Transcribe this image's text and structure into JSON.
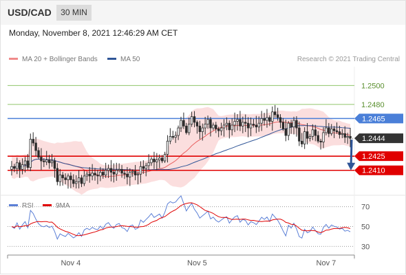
{
  "header": {
    "symbol": "USD/CAD",
    "timeframe": "30 MIN"
  },
  "datetime": "Monday, November 8, 2021 12:46:29 AM CET",
  "legend": {
    "items": [
      {
        "label": "MA 20 + Bollinger Bands",
        "color": "#f08a8a"
      },
      {
        "label": "MA 50",
        "color": "#2f5597"
      }
    ],
    "credit": "Research © 2021 Trading Central"
  },
  "rsi_legend": {
    "items": [
      {
        "label": "RSI",
        "color": "#5b7fd6"
      },
      {
        "label": "9MA",
        "color": "#e00000"
      }
    ]
  },
  "chart_data": [
    {
      "type": "candlestick",
      "symbol": "USD/CAD",
      "timeframe": "30 MIN",
      "ylim": [
        1.2385,
        1.252
      ],
      "x_ticks": [
        {
          "label": "Nov 4",
          "index": 22
        },
        {
          "label": "Nov 5",
          "index": 69
        },
        {
          "label": "Nov 7",
          "index": 117
        }
      ],
      "levels": [
        {
          "value": 1.25,
          "label": "1.2500",
          "kind": "target",
          "color": "#8fc56a"
        },
        {
          "value": 1.248,
          "label": "1.2480",
          "kind": "target",
          "color": "#8fc56a"
        },
        {
          "value": 1.2465,
          "label": "1.2465",
          "kind": "pivot",
          "color": "#4a7fd8"
        },
        {
          "value": 1.2425,
          "label": "1.2425",
          "kind": "support",
          "color": "#e00000"
        },
        {
          "value": 1.241,
          "label": "1.2410",
          "kind": "support",
          "color": "#e00000"
        }
      ],
      "last_price": {
        "value": 1.2444,
        "label": "1.2444",
        "color": "#333333"
      },
      "series": [
        {
          "name": "MA 20 + Bollinger Bands",
          "color": "#e86060"
        },
        {
          "name": "MA 50",
          "color": "#2f5597"
        }
      ],
      "closes": [
        1.2414,
        1.2412,
        1.2418,
        1.2411,
        1.2416,
        1.242,
        1.2413,
        1.2443,
        1.2439,
        1.2431,
        1.2424,
        1.242,
        1.2419,
        1.2421,
        1.2418,
        1.242,
        1.2412,
        1.2398,
        1.2405,
        1.2402,
        1.24,
        1.2404,
        1.24,
        1.2396,
        1.2398,
        1.2402,
        1.2396,
        1.2404,
        1.2406,
        1.2404,
        1.2407,
        1.2405,
        1.2404,
        1.2408,
        1.2405,
        1.241,
        1.2412,
        1.2408,
        1.2406,
        1.241,
        1.2411,
        1.2407,
        1.2406,
        1.2403,
        1.2408,
        1.2409,
        1.2405,
        1.2406,
        1.2414,
        1.2412,
        1.2415,
        1.2418,
        1.2422,
        1.2419,
        1.2421,
        1.2423,
        1.242,
        1.2427,
        1.2441,
        1.2446,
        1.2445,
        1.2447,
        1.2455,
        1.2463,
        1.2457,
        1.245,
        1.2459,
        1.2467,
        1.2461,
        1.2457,
        1.2451,
        1.2455,
        1.2459,
        1.2464,
        1.2455,
        1.2458,
        1.2454,
        1.2452,
        1.2455,
        1.2458,
        1.246,
        1.2453,
        1.2458,
        1.2462,
        1.2464,
        1.2457,
        1.2461,
        1.246,
        1.2455,
        1.2459,
        1.2458,
        1.2456,
        1.246,
        1.2465,
        1.2463,
        1.2466,
        1.2462,
        1.2472,
        1.2469,
        1.2466,
        1.2461,
        1.2454,
        1.2447,
        1.246,
        1.2456,
        1.2463,
        1.2455,
        1.2441,
        1.2438,
        1.2451,
        1.2444,
        1.2446,
        1.2453,
        1.2447,
        1.2441,
        1.244,
        1.245,
        1.2455,
        1.2449,
        1.2454,
        1.2452,
        1.2451,
        1.2448,
        1.2449,
        1.2445,
        1.2446,
        1.2444
      ],
      "forecast_arrow": {
        "from": 1.2444,
        "to": 1.241
      }
    },
    {
      "type": "line",
      "name": "RSI",
      "ylim": [
        24,
        76
      ],
      "y_ticks": [
        70,
        50,
        30
      ],
      "series": [
        {
          "name": "RSI",
          "color": "#5b7fd6"
        },
        {
          "name": "9MA",
          "color": "#e00000"
        }
      ]
    }
  ]
}
